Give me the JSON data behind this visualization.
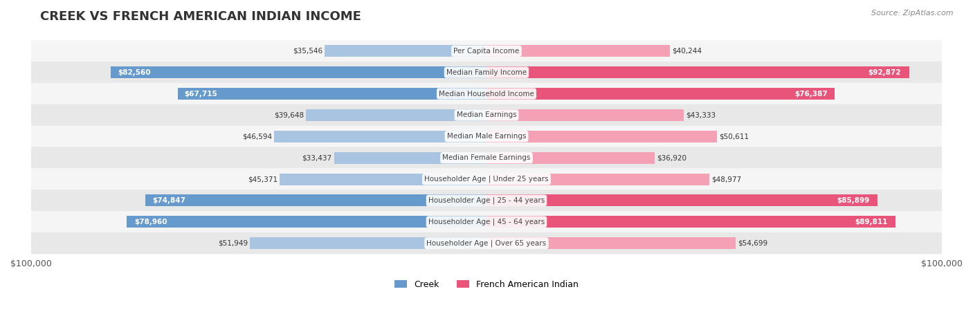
{
  "title": "CREEK VS FRENCH AMERICAN INDIAN INCOME",
  "source": "Source: ZipAtlas.com",
  "categories": [
    "Per Capita Income",
    "Median Family Income",
    "Median Household Income",
    "Median Earnings",
    "Median Male Earnings",
    "Median Female Earnings",
    "Householder Age | Under 25 years",
    "Householder Age | 25 - 44 years",
    "Householder Age | 45 - 64 years",
    "Householder Age | Over 65 years"
  ],
  "creek_values": [
    35546,
    82560,
    67715,
    39648,
    46594,
    33437,
    45371,
    74847,
    78960,
    51949
  ],
  "french_values": [
    40244,
    92872,
    76387,
    43333,
    50611,
    36920,
    48977,
    85899,
    89811,
    54699
  ],
  "creek_labels": [
    "$35,546",
    "$82,560",
    "$67,715",
    "$39,648",
    "$46,594",
    "$33,437",
    "$45,371",
    "$74,847",
    "$78,960",
    "$51,949"
  ],
  "french_labels": [
    "$40,244",
    "$92,872",
    "$76,387",
    "$43,333",
    "$50,611",
    "$36,920",
    "$48,977",
    "$85,899",
    "$89,811",
    "$54,699"
  ],
  "creek_color_light": "#a8c4e0",
  "creek_color_dark": "#6699cc",
  "french_color_light": "#f4a0b5",
  "french_color_dark": "#e8547a",
  "max_val": 100000,
  "label_threshold_creek": 60000,
  "label_threshold_french": 60000,
  "bg_color": "#ffffff",
  "row_bg_light": "#f5f5f5",
  "row_bg_dark": "#e8e8e8",
  "legend_creek": "Creek",
  "legend_french": "French American Indian"
}
